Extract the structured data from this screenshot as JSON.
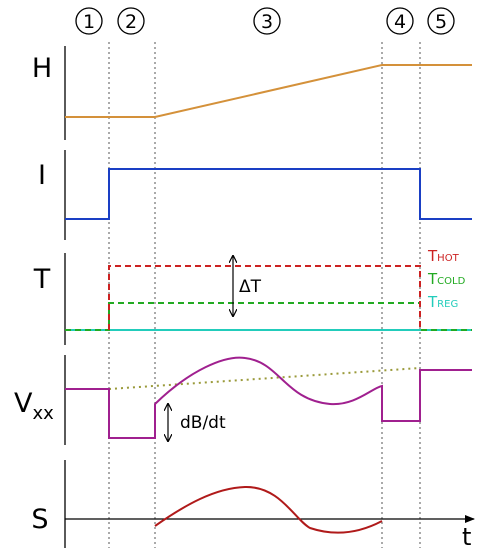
{
  "phases": [
    "1",
    "2",
    "3",
    "4",
    "5"
  ],
  "panels": {
    "h": {
      "label": "H"
    },
    "i": {
      "label": "I"
    },
    "t": {
      "label": "T"
    },
    "v": {
      "label_main": "V",
      "label_sub": "xx"
    },
    "s": {
      "label": "S"
    }
  },
  "temps": {
    "hot": {
      "main": "T",
      "sub": "HOT",
      "color": "#cc2222"
    },
    "cold": {
      "main": "T",
      "sub": "COLD",
      "color": "#22aa22"
    },
    "reg": {
      "main": "T",
      "sub": "REG",
      "color": "#22ccbb"
    }
  },
  "annotations": {
    "delta_t": "ΔT",
    "db_dt": "dB/dt",
    "time_axis": "t"
  },
  "colors": {
    "h_curve": "#d4913a",
    "i_curve": "#1a3fc4",
    "v_curve": "#a0208f",
    "s_curve": "#b01a1a",
    "background_trend": "#9a9a3a",
    "divider": "#555555"
  }
}
